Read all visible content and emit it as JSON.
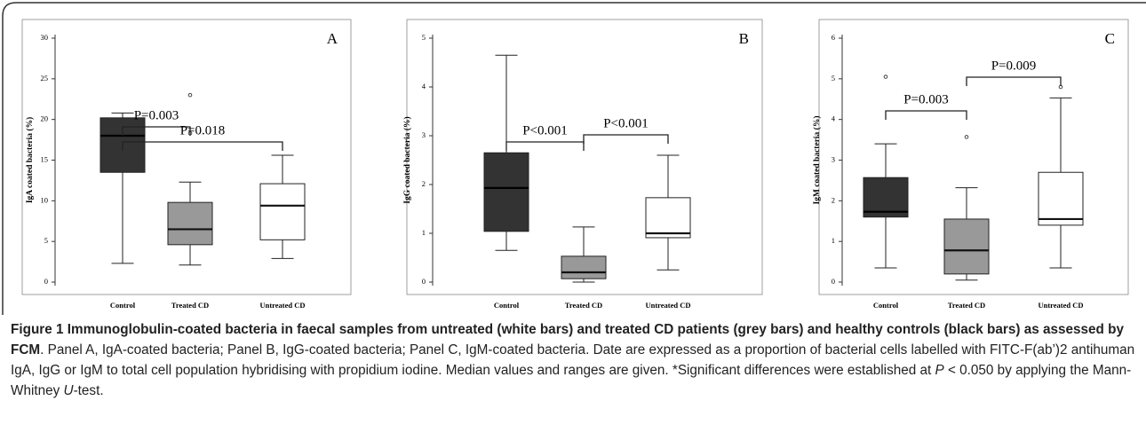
{
  "chart_data": [
    {
      "type": "box",
      "panel": "A",
      "ylabel": "IgA coated bacteria (%)",
      "categories": [
        "Control",
        "Treated CD",
        "Untreated CD"
      ],
      "colors": [
        "#333333",
        "#999999",
        "#ffffff"
      ],
      "min": [
        2.3,
        2.1,
        2.9
      ],
      "q1": [
        13.5,
        4.6,
        5.2
      ],
      "median": [
        18.0,
        6.5,
        9.4
      ],
      "q3": [
        20.2,
        9.8,
        12.1
      ],
      "max": [
        20.8,
        12.3,
        15.6
      ],
      "outliers": [
        [],
        [
          18.3,
          23
        ],
        []
      ],
      "ylim": [
        0,
        30
      ],
      "yticks": [
        0,
        5,
        10,
        15,
        20,
        25,
        30
      ],
      "annotations": [
        "P=0.003",
        "P=0.018"
      ]
    },
    {
      "type": "box",
      "panel": "B",
      "ylabel": "IgG coated bacteria (%)",
      "categories": [
        "Control",
        "Treated CD",
        "Untreated CD"
      ],
      "colors": [
        "#333333",
        "#999999",
        "#ffffff"
      ],
      "min": [
        0.65,
        0,
        0.25
      ],
      "q1": [
        1.04,
        0.07,
        0.91
      ],
      "median": [
        1.93,
        0.2,
        1.0
      ],
      "q3": [
        2.65,
        0.53,
        1.73
      ],
      "max": [
        4.65,
        1.13,
        2.6
      ],
      "outliers": [
        [],
        [],
        []
      ],
      "ylim": [
        0,
        5
      ],
      "yticks": [
        0,
        1,
        2,
        3,
        4,
        5
      ],
      "annotations": [
        "P<0.001",
        "P<0.001"
      ]
    },
    {
      "type": "box",
      "panel": "C",
      "ylabel": "IgM coated bacteria (%)",
      "categories": [
        "Control",
        "Treated CD",
        "Untreated CD"
      ],
      "colors": [
        "#333333",
        "#999999",
        "#ffffff"
      ],
      "min": [
        0.35,
        0.05,
        0.35
      ],
      "q1": [
        1.6,
        0.2,
        1.4
      ],
      "median": [
        1.73,
        0.78,
        1.55
      ],
      "q3": [
        2.57,
        1.55,
        2.7
      ],
      "max": [
        3.4,
        2.32,
        4.53
      ],
      "outliers": [
        [
          5.05
        ],
        [
          3.57
        ],
        [
          4.8
        ]
      ],
      "ylim": [
        0,
        6
      ],
      "yticks": [
        0,
        1,
        2,
        3,
        4,
        5,
        6
      ],
      "annotations": [
        "P=0.003",
        "P=0.009"
      ]
    }
  ],
  "caption": {
    "title": "Figure 1 Immunoglobulin-coated bacteria in faecal samples from untreated (white bars) and treated CD patients (grey bars) and healthy controls (black bars) as assessed by FCM",
    "body": [
      ". Panel A, IgA-coated bacteria; Panel B, IgG-coated bacteria; Panel C, IgM-coated bacteria. Date are expressed as a proportion of bacterial cells labelled with FITC-F(ab’)2 antihuman IgA, IgG or IgM to total cell population hybridising with propidium iodine. Median values and ranges are given. *Significant differences were established at ",
      "P",
      " < 0.050 by applying the Mann-Whitney ",
      "U",
      "-test."
    ]
  }
}
